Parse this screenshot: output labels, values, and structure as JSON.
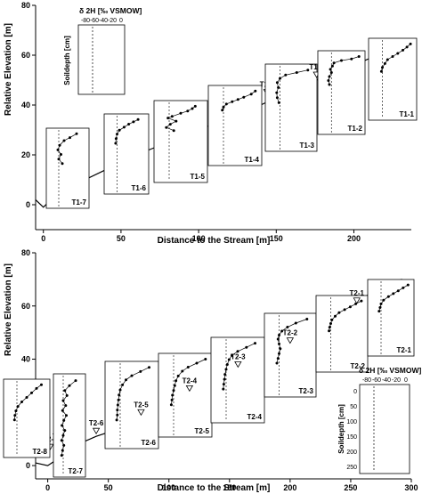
{
  "chart_data": [
    {
      "type": "line",
      "id": "transect-1",
      "xlabel": "Distance to the Stream [m]",
      "ylabel": "Relative Elevation [m]",
      "xlim": [
        -5,
        237
      ],
      "ylim": [
        -10,
        80
      ],
      "x_ticks": [
        "0",
        "50",
        "100",
        "150",
        "200"
      ],
      "y_ticks": [
        "0",
        "20",
        "40",
        "60",
        "80"
      ],
      "terrain": {
        "x": [
          -5,
          0,
          5,
          10,
          20,
          40,
          60,
          80,
          100,
          120,
          140,
          160,
          180,
          200,
          215,
          225,
          232,
          235
        ],
        "y": [
          2,
          -1,
          2,
          4,
          8,
          14,
          20,
          25,
          30,
          35,
          40,
          46,
          51,
          56,
          60,
          63,
          64,
          62
        ]
      },
      "sites": [
        {
          "label": "T1-7",
          "x": 18,
          "y": 11,
          "profile": [
            [
              -20,
              0.05
            ],
            [
              -35,
              0.1
            ],
            [
              -48,
              0.14
            ],
            [
              -58,
              0.2
            ],
            [
              -62,
              0.26
            ],
            [
              -55,
              0.32
            ],
            [
              -60,
              0.38
            ],
            [
              -52,
              0.44
            ]
          ]
        },
        {
          "label": "T1-6",
          "x": 47,
          "y": 19,
          "profile": [
            [
              -15,
              0.05
            ],
            [
              -25,
              0.08
            ],
            [
              -35,
              0.11
            ],
            [
              -45,
              0.15
            ],
            [
              -55,
              0.19
            ],
            [
              -60,
              0.24
            ],
            [
              -62,
              0.3
            ],
            [
              -63,
              0.36
            ]
          ]
        },
        {
          "label": "T1-5",
          "x": 77,
          "y": 27,
          "profile": [
            [
              -15,
              0.05
            ],
            [
              -20,
              0.08
            ],
            [
              -28,
              0.11
            ],
            [
              -40,
              0.14
            ],
            [
              -55,
              0.18
            ],
            [
              -62,
              0.2
            ],
            [
              -48,
              0.24
            ],
            [
              -58,
              0.28
            ],
            [
              -65,
              0.32
            ],
            [
              -52,
              0.36
            ]
          ]
        },
        {
          "label": "T1-4",
          "x": 112,
          "y": 35,
          "profile": [
            [
              -5,
              0.05
            ],
            [
              -12,
              0.09
            ],
            [
              -25,
              0.13
            ],
            [
              -35,
              0.16
            ],
            [
              -45,
              0.19
            ],
            [
              -55,
              0.22
            ],
            [
              -60,
              0.26
            ],
            [
              -62,
              0.3
            ]
          ]
        },
        {
          "label": "T1-3",
          "x": 144,
          "y": 43,
          "profile": [
            [
              -10,
              0.05
            ],
            [
              -30,
              0.08
            ],
            [
              -50,
              0.11
            ],
            [
              -60,
              0.15
            ],
            [
              -65,
              0.2
            ],
            [
              -63,
              0.26
            ],
            [
              -66,
              0.32
            ],
            [
              -65,
              0.38
            ],
            [
              -62,
              0.44
            ]
          ]
        },
        {
          "label": "T1-2",
          "x": 176,
          "y": 50,
          "profile": [
            [
              -5,
              0.05
            ],
            [
              -20,
              0.08
            ],
            [
              -40,
              0.1
            ],
            [
              -55,
              0.13
            ],
            [
              -58,
              0.17
            ],
            [
              -62,
              0.21
            ],
            [
              -60,
              0.25
            ],
            [
              -64,
              0.3
            ],
            [
              -66,
              0.35
            ],
            [
              -64,
              0.4
            ]
          ]
        },
        {
          "label": "T1-1",
          "x": 217,
          "y": 60,
          "profile": [
            [
              -5,
              0.05
            ],
            [
              -12,
              0.09
            ],
            [
              -20,
              0.13
            ],
            [
              -30,
              0.17
            ],
            [
              -40,
              0.21
            ],
            [
              -50,
              0.25
            ],
            [
              -55,
              0.3
            ],
            [
              -60,
              0.35
            ],
            [
              -62,
              0.4
            ]
          ]
        }
      ]
    },
    {
      "type": "line",
      "id": "transect-2",
      "xlabel": "Distance to the Stream [m]",
      "ylabel": "Relative Elevation [m]",
      "xlim": [
        -10,
        300
      ],
      "ylim": [
        -5,
        80
      ],
      "x_ticks": [
        "0",
        "50",
        "100",
        "150",
        "200",
        "250",
        "300"
      ],
      "y_ticks": [
        "0",
        "20",
        "40",
        "60",
        "80"
      ],
      "terrain": {
        "x": [
          -10,
          0,
          10,
          20,
          40,
          60,
          80,
          100,
          120,
          140,
          160,
          180,
          200,
          220,
          240,
          260,
          275,
          285,
          292,
          300
        ],
        "y": [
          1,
          0,
          3,
          7,
          11,
          14,
          18,
          22,
          26,
          30,
          35,
          40,
          45,
          51,
          57,
          63,
          67,
          69,
          70,
          66
        ]
      },
      "sites": [
        {
          "label": "T2-8",
          "x": 2,
          "y": 5,
          "profile": [
            [
              -10,
              0.05
            ],
            [
              -20,
              0.1
            ],
            [
              -30,
              0.16
            ],
            [
              -40,
              0.22
            ],
            [
              -50,
              0.28
            ],
            [
              -58,
              0.34
            ],
            [
              -62,
              0.4
            ],
            [
              -64,
              0.46
            ],
            [
              -65,
              0.52
            ]
          ]
        },
        {
          "label": "T2-7",
          "x": 10,
          "y": 6,
          "profile": [
            [
              -20,
              0.05
            ],
            [
              -40,
              0.1
            ],
            [
              -55,
              0.15
            ],
            [
              -48,
              0.2
            ],
            [
              -60,
              0.25
            ],
            [
              -52,
              0.3
            ],
            [
              -62,
              0.35
            ],
            [
              -50,
              0.4
            ],
            [
              -58,
              0.45
            ],
            [
              -64,
              0.5
            ],
            [
              -55,
              0.55
            ],
            [
              -60,
              0.6
            ],
            [
              -65,
              0.65
            ],
            [
              -58,
              0.7
            ],
            [
              -62,
              0.75
            ],
            [
              -65,
              0.8
            ]
          ]
        },
        {
          "label": "T2-6",
          "x": 40,
          "y": 11,
          "profile": [
            [
              -10,
              0.05
            ],
            [
              -25,
              0.1
            ],
            [
              -40,
              0.15
            ],
            [
              -50,
              0.2
            ],
            [
              -56,
              0.26
            ],
            [
              -60,
              0.32
            ],
            [
              -62,
              0.38
            ],
            [
              -63,
              0.44
            ],
            [
              -64,
              0.5
            ],
            [
              -65,
              0.56
            ],
            [
              -65,
              0.62
            ],
            [
              -66,
              0.68
            ]
          ]
        },
        {
          "label": "T2-5",
          "x": 77,
          "y": 18,
          "profile": [
            [
              -5,
              0.05
            ],
            [
              -20,
              0.1
            ],
            [
              -35,
              0.15
            ],
            [
              -45,
              0.2
            ],
            [
              -52,
              0.26
            ],
            [
              -56,
              0.32
            ],
            [
              -58,
              0.38
            ],
            [
              -60,
              0.44
            ],
            [
              -62,
              0.5
            ],
            [
              -63,
              0.56
            ],
            [
              -64,
              0.62
            ]
          ]
        },
        {
          "label": "T2-4",
          "x": 117,
          "y": 27,
          "profile": [
            [
              -10,
              0.05
            ],
            [
              -25,
              0.1
            ],
            [
              -40,
              0.15
            ],
            [
              -50,
              0.2
            ],
            [
              -55,
              0.25
            ],
            [
              -58,
              0.31
            ],
            [
              -60,
              0.37
            ],
            [
              -62,
              0.43
            ],
            [
              -63,
              0.49
            ],
            [
              -64,
              0.55
            ],
            [
              -65,
              0.61
            ]
          ]
        },
        {
          "label": "T2-3",
          "x": 157,
          "y": 36,
          "profile": [
            [
              -10,
              0.05
            ],
            [
              -30,
              0.1
            ],
            [
              -45,
              0.15
            ],
            [
              -55,
              0.2
            ],
            [
              -60,
              0.25
            ],
            [
              -62,
              0.3
            ],
            [
              -60,
              0.36
            ],
            [
              -58,
              0.42
            ],
            [
              -60,
              0.48
            ],
            [
              -62,
              0.54
            ],
            [
              -64,
              0.6
            ]
          ]
        },
        {
          "label": "T2-2",
          "x": 200,
          "y": 45,
          "profile": [
            [
              -5,
              0.05
            ],
            [
              -15,
              0.09
            ],
            [
              -25,
              0.13
            ],
            [
              -35,
              0.17
            ],
            [
              -45,
              0.21
            ],
            [
              -52,
              0.26
            ],
            [
              -58,
              0.31
            ],
            [
              -60,
              0.36
            ],
            [
              -62,
              0.41
            ],
            [
              -63,
              0.46
            ]
          ]
        },
        {
          "label": "T2-1",
          "x": 255,
          "y": 60,
          "profile": [
            [
              -5,
              0.05
            ],
            [
              -15,
              0.09
            ],
            [
              -25,
              0.13
            ],
            [
              -35,
              0.17
            ],
            [
              -45,
              0.21
            ],
            [
              -55,
              0.26
            ],
            [
              -60,
              0.31
            ],
            [
              -62,
              0.36
            ],
            [
              -64,
              0.41
            ]
          ]
        }
      ]
    }
  ],
  "legend_key": {
    "title": "δ 2H [‰ VSMOW]",
    "ticks": [
      "-80",
      "-60",
      "-40",
      "-20",
      "0"
    ],
    "ylabel": "Soildepth [cm]",
    "depth_ticks_bottom": [
      "0",
      "50",
      "100",
      "150",
      "200",
      "250"
    ]
  },
  "colors": {
    "line": "#000000",
    "marker": "#000000",
    "background": "#ffffff"
  }
}
